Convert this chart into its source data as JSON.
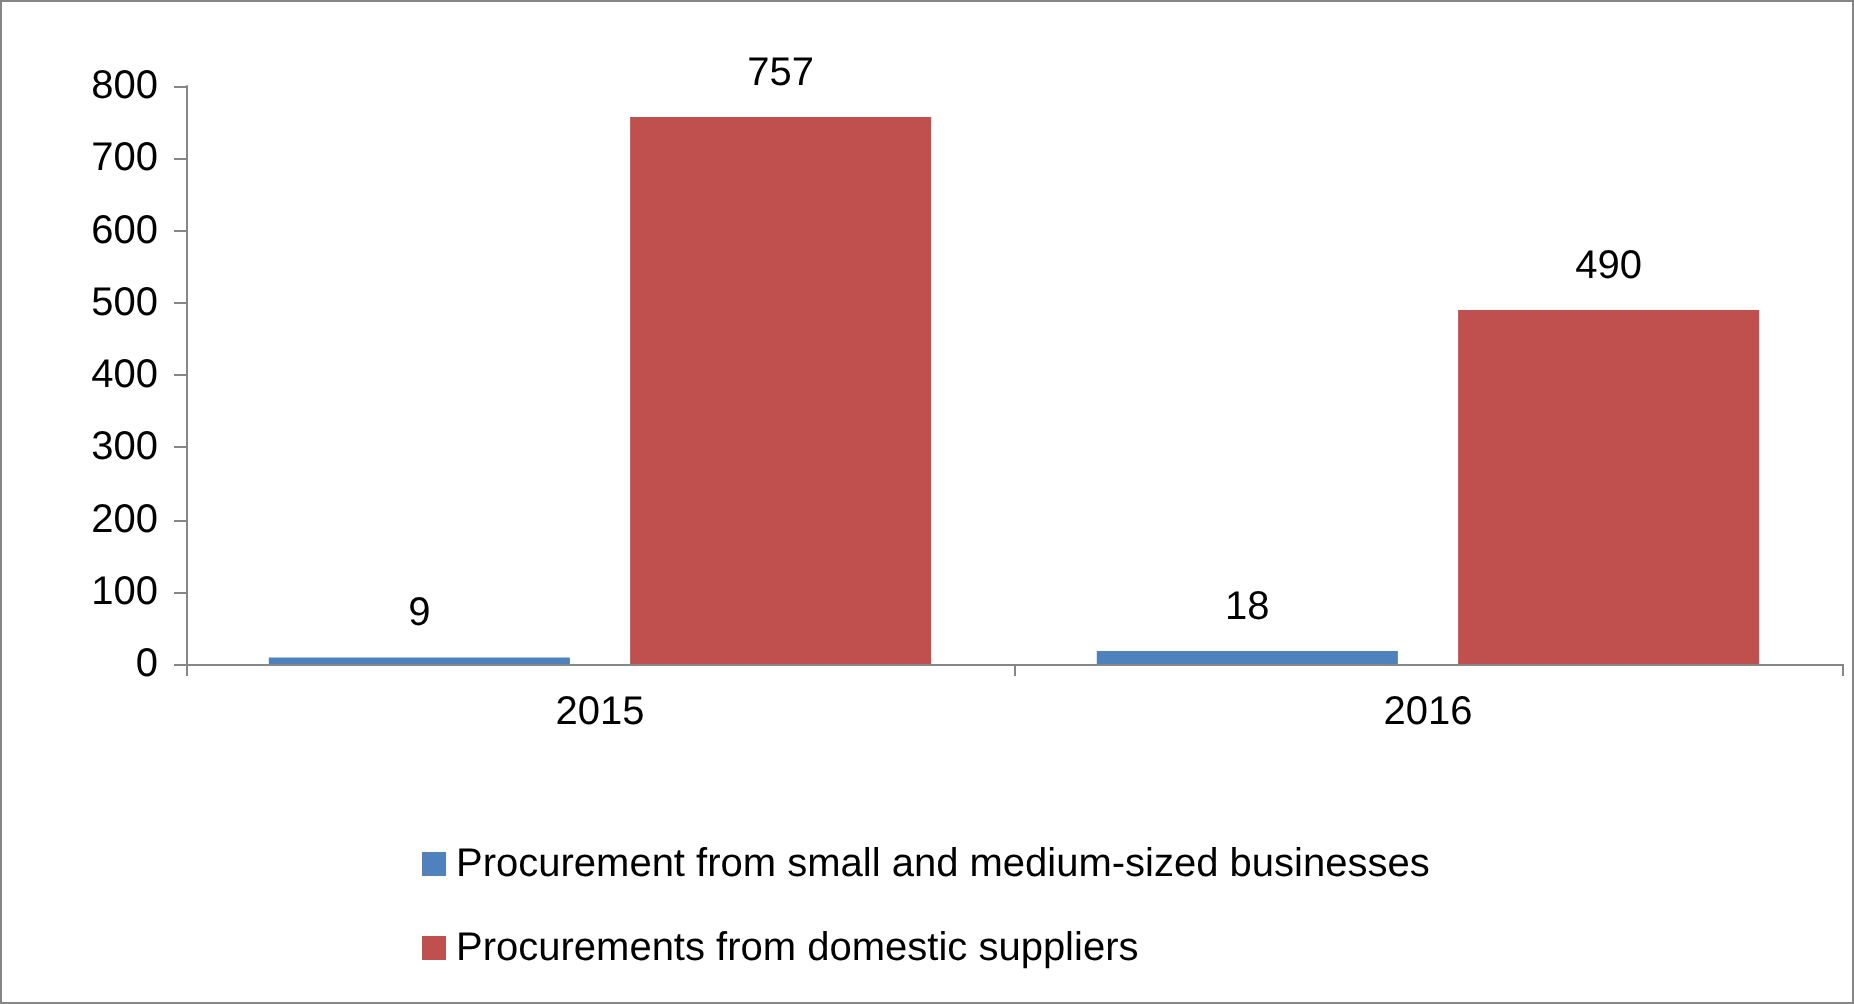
{
  "chart_data": {
    "type": "bar",
    "categories": [
      "2015",
      "2016"
    ],
    "series": [
      {
        "name": "Procurement from small and medium-sized businesses",
        "color": "#4f81bd",
        "values": [
          9,
          18
        ]
      },
      {
        "name": "Procurements from domestic suppliers",
        "color": "#c0504d",
        "values": [
          757,
          490
        ]
      }
    ],
    "ylim": [
      0,
      800
    ],
    "yticks": [
      0,
      100,
      200,
      300,
      400,
      500,
      600,
      700,
      800
    ],
    "grid": false,
    "legend": "bottom",
    "data_labels": true
  }
}
